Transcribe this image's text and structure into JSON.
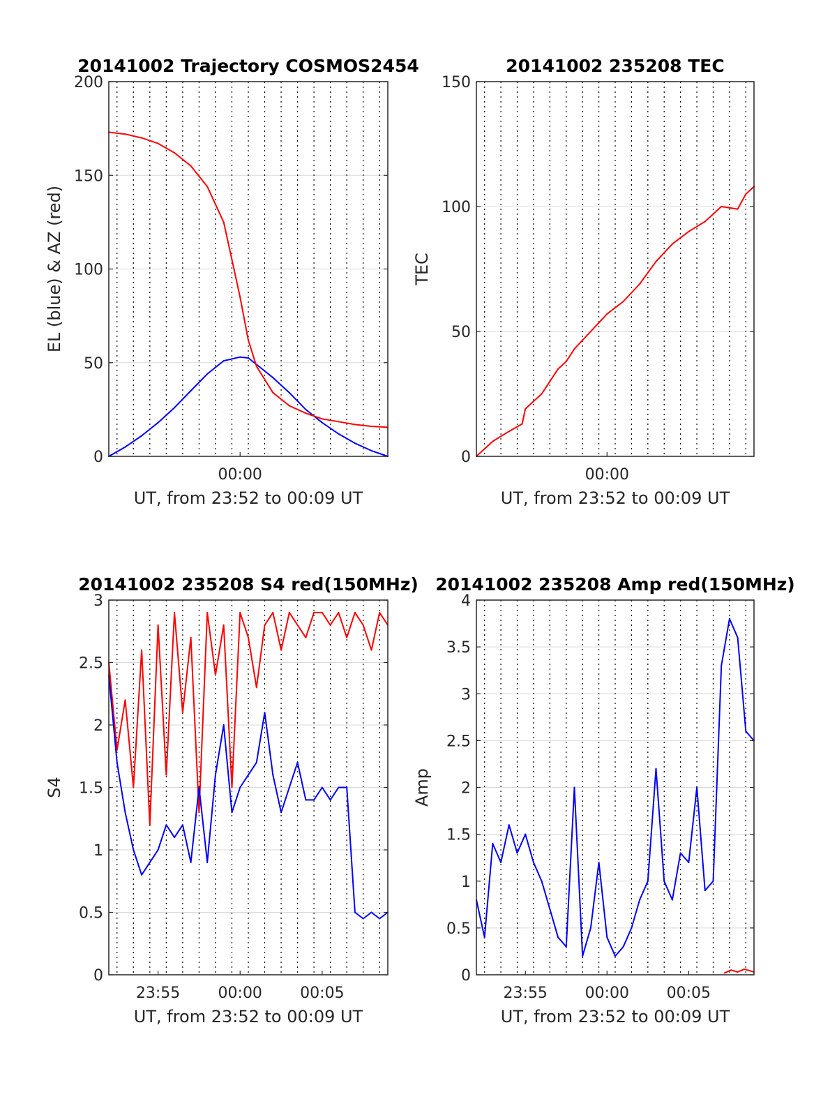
{
  "colors": {
    "red": "#ff0000",
    "blue": "#0000ff",
    "grid": "#d9d9d9",
    "axis": "#262626"
  },
  "chart_data": [
    {
      "type": "line",
      "title": "20141002 Trajectory COSMOS2454",
      "ylabel": "EL (blue) & AZ (red)",
      "xlabel": "UT, from 23:52 to 00:09 UT",
      "xlim": [
        0,
        17
      ],
      "ylim": [
        0,
        200
      ],
      "yticks": [
        0,
        50,
        100,
        150,
        200
      ],
      "ytick_labels": [
        "0",
        "50",
        "100",
        "150",
        "200"
      ],
      "xticks": [
        8
      ],
      "xtick_labels": [
        "00:00"
      ],
      "grid": "dotted vertical lines every 0.5 min, horizontal grid at y ticks",
      "series": [
        {
          "color": "blue",
          "x": [
            0,
            1,
            2,
            3,
            4,
            5,
            6,
            7,
            8,
            8.5,
            9,
            10,
            11,
            12,
            13,
            14,
            15,
            16,
            17
          ],
          "values": [
            0,
            5,
            11,
            18,
            26,
            35,
            44,
            51,
            53,
            52.5,
            49,
            42,
            34,
            25,
            18,
            12,
            7,
            3,
            0
          ]
        },
        {
          "color": "red",
          "x": [
            0,
            1,
            2,
            3,
            4,
            5,
            6,
            7,
            7.5,
            8,
            8.5,
            9,
            10,
            11,
            12,
            13,
            14,
            15,
            16,
            17
          ],
          "values": [
            173,
            172,
            170,
            167,
            162,
            155,
            144,
            125,
            105,
            85,
            62,
            48,
            34,
            27,
            23,
            20,
            18.5,
            17,
            16,
            15.5
          ]
        }
      ]
    },
    {
      "type": "line",
      "title": "20141002 235208 TEC",
      "ylabel": "TEC",
      "xlabel": "UT, from 23:52 to 00:09 UT",
      "xlim": [
        0,
        17
      ],
      "ylim": [
        0,
        150
      ],
      "yticks": [
        0,
        50,
        100,
        150
      ],
      "ytick_labels": [
        "0",
        "50",
        "100",
        "150"
      ],
      "xticks": [
        8
      ],
      "xtick_labels": [
        "00:00"
      ],
      "series": [
        {
          "color": "red",
          "x": [
            0,
            1,
            2,
            2.8,
            3,
            3.5,
            4,
            4.5,
            5,
            5.5,
            6,
            7,
            8,
            9,
            10,
            11,
            12,
            13,
            14,
            15,
            16,
            16.5,
            17
          ],
          "values": [
            0,
            6,
            10,
            13,
            19,
            22,
            25,
            30,
            35,
            38,
            43,
            50,
            57,
            62,
            69,
            78,
            85,
            90,
            94,
            100,
            99,
            105,
            108
          ]
        }
      ]
    },
    {
      "type": "line",
      "title": "20141002 235208 S4 red(150MHz)",
      "ylabel": "S4",
      "xlabel": "UT, from 23:52 to 00:09 UT",
      "xlim": [
        0,
        17
      ],
      "ylim": [
        0,
        3
      ],
      "yticks": [
        0,
        0.5,
        1,
        1.5,
        2,
        2.5,
        3
      ],
      "ytick_labels": [
        "0",
        "0.5",
        "1",
        "1.5",
        "2",
        "2.5",
        "3"
      ],
      "xticks": [
        3,
        8,
        13
      ],
      "xtick_labels": [
        "23:55",
        "00:00",
        "00:05"
      ],
      "series": [
        {
          "color": "red",
          "x": [
            0,
            0.5,
            1,
            1.5,
            2,
            2.5,
            3,
            3.5,
            4,
            4.5,
            5,
            5.5,
            6,
            6.5,
            7,
            7.5,
            8,
            8.5,
            9,
            9.5,
            10,
            10.5,
            11,
            11.5,
            12,
            12.5,
            13,
            13.5,
            14,
            14.5,
            15,
            15.5,
            16,
            16.5,
            17
          ],
          "values": [
            2.5,
            1.8,
            2.2,
            1.5,
            2.6,
            1.2,
            2.8,
            1.6,
            2.9,
            2.1,
            2.7,
            1.3,
            2.9,
            2.4,
            2.8,
            1.5,
            2.9,
            2.7,
            2.3,
            2.8,
            2.9,
            2.6,
            2.9,
            2.8,
            2.7,
            2.9,
            2.9,
            2.8,
            2.9,
            2.7,
            2.9,
            2.8,
            2.6,
            2.9,
            2.8
          ]
        },
        {
          "color": "blue",
          "x": [
            0,
            0.5,
            1,
            1.5,
            2,
            2.5,
            3,
            3.5,
            4,
            4.5,
            5,
            5.5,
            6,
            6.5,
            7,
            7.5,
            8,
            8.5,
            9,
            9.5,
            10,
            10.5,
            11,
            11.5,
            12,
            12.5,
            13,
            13.5,
            14,
            14.5,
            15,
            15.5,
            16,
            16.5,
            17
          ],
          "values": [
            2.4,
            1.7,
            1.3,
            1.0,
            0.8,
            0.9,
            1.0,
            1.2,
            1.1,
            1.2,
            0.9,
            1.5,
            0.9,
            1.6,
            2.0,
            1.3,
            1.5,
            1.6,
            1.7,
            2.1,
            1.6,
            1.3,
            1.5,
            1.7,
            1.4,
            1.4,
            1.5,
            1.4,
            1.5,
            1.5,
            0.5,
            0.45,
            0.5,
            0.45,
            0.5
          ]
        }
      ]
    },
    {
      "type": "line",
      "title": "20141002 235208 Amp red(150MHz)",
      "ylabel": "Amp",
      "xlabel": "UT, from 23:52 to 00:09 UT",
      "xlim": [
        0,
        17
      ],
      "ylim": [
        0,
        4
      ],
      "yticks": [
        0,
        0.5,
        1,
        1.5,
        2,
        2.5,
        3,
        3.5,
        4
      ],
      "ytick_labels": [
        "0",
        "0.5",
        "1",
        "1.5",
        "2",
        "2.5",
        "3",
        "3.5",
        "4"
      ],
      "xticks": [
        3,
        8,
        13
      ],
      "xtick_labels": [
        "23:55",
        "00:00",
        "00:05"
      ],
      "series": [
        {
          "color": "blue",
          "x": [
            0,
            0.5,
            1,
            1.5,
            2,
            2.5,
            3,
            3.5,
            4,
            4.5,
            5,
            5.5,
            6,
            6.5,
            7,
            7.5,
            8,
            8.5,
            9,
            9.5,
            10,
            10.5,
            11,
            11.5,
            12,
            12.5,
            13,
            13.5,
            14,
            14.5,
            15,
            15.5,
            16,
            16.5,
            17
          ],
          "values": [
            0.8,
            0.4,
            1.4,
            1.2,
            1.6,
            1.3,
            1.5,
            1.2,
            1.0,
            0.7,
            0.4,
            0.3,
            2.0,
            0.2,
            0.5,
            1.2,
            0.4,
            0.2,
            0.3,
            0.5,
            0.8,
            1.0,
            2.2,
            1.0,
            0.8,
            1.3,
            1.2,
            2.0,
            0.9,
            1.0,
            3.3,
            3.8,
            3.6,
            2.6,
            2.5
          ]
        },
        {
          "color": "red",
          "x": [
            15.2,
            15.6,
            16,
            16.4,
            16.8,
            17
          ],
          "values": [
            0.02,
            0.05,
            0.03,
            0.06,
            0.04,
            0.03
          ]
        }
      ]
    }
  ]
}
